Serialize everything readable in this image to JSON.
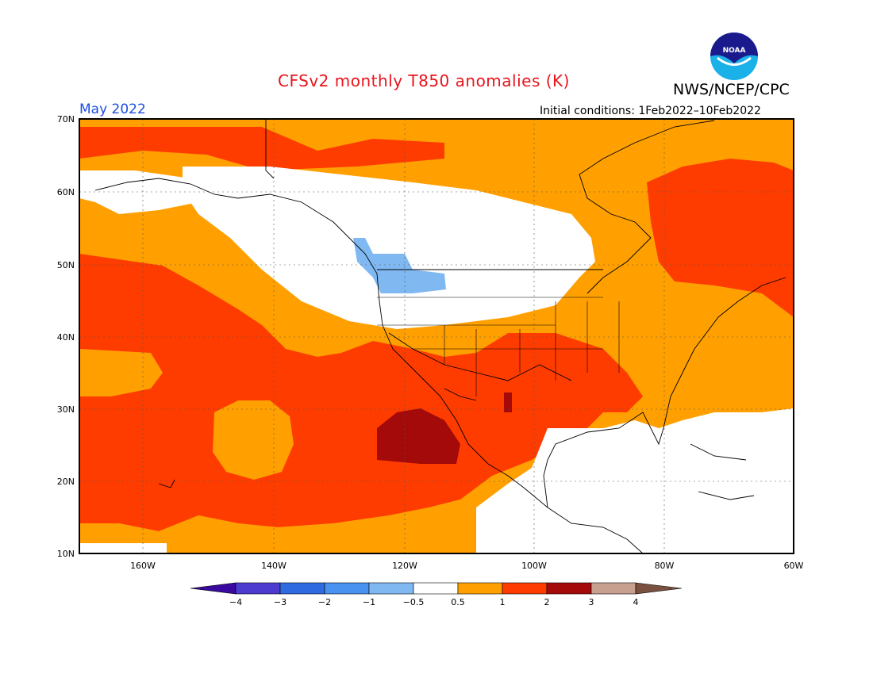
{
  "header": {
    "title": "CFSv2 monthly T850 anomalies (K)",
    "agency": "NWS/NCEP/CPC",
    "period": "May 2022",
    "initial_conditions": "Initial conditions: 1Feb2022–10Feb2022",
    "logo_text": "NOAA"
  },
  "map": {
    "lat_labels": [
      "70N",
      "60N",
      "50N",
      "40N",
      "30N",
      "20N",
      "10N"
    ],
    "lon_labels": [
      "160W",
      "140W",
      "120W",
      "100W",
      "80W",
      "60W"
    ]
  },
  "legend": {
    "labels": [
      "−4",
      "−3",
      "−2",
      "−1",
      "−0.5",
      "0.5",
      "1",
      "2",
      "3",
      "4"
    ],
    "colors": [
      "#3a0aa0",
      "#4d3bd0",
      "#2f6ae0",
      "#4a92ef",
      "#80b8f2",
      "#ffffff",
      "#ffa000",
      "#ff3c00",
      "#a50a0a",
      "#c8a090",
      "#7a5040"
    ]
  }
}
